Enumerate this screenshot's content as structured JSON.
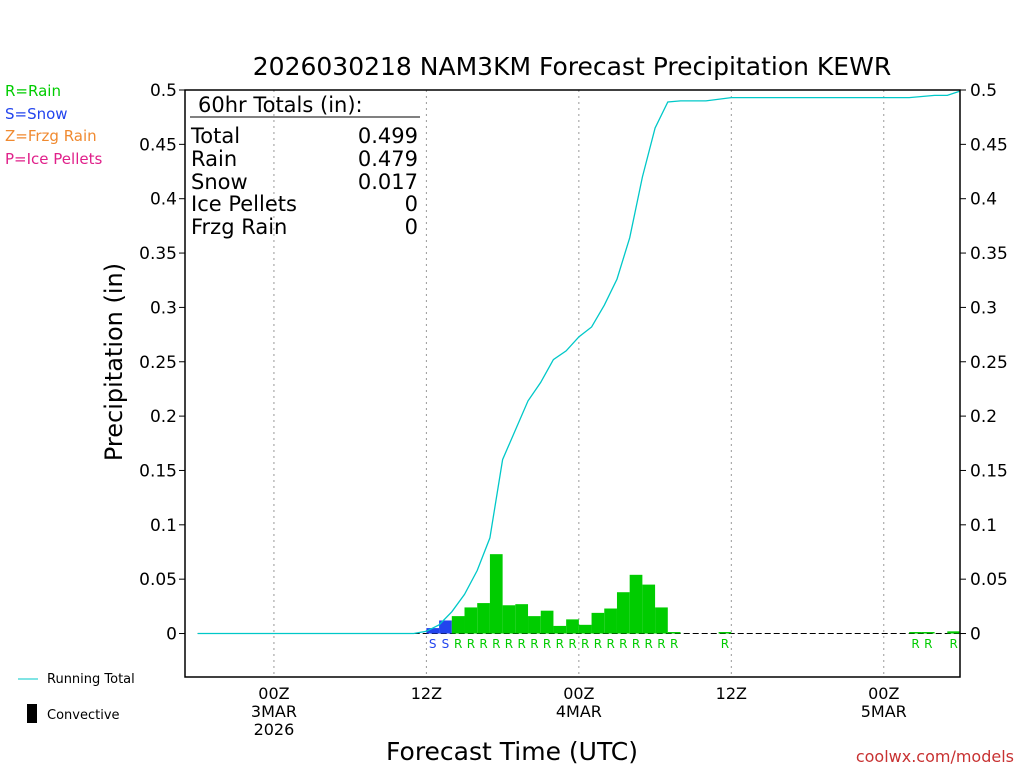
{
  "chart_data": {
    "type": "bar",
    "title": "2026030218 NAM3KM Forecast Precipitation KEWR",
    "xlabel": "Forecast Time (UTC)",
    "ylabel": "Precipitation (in)",
    "ylim": [
      -0.04,
      0.5
    ],
    "y_ticks": [
      0,
      0.05,
      0.1,
      0.15,
      0.2,
      0.25,
      0.3,
      0.35,
      0.4,
      0.45,
      0.5
    ],
    "y_tick_labels": [
      "0",
      "0.05",
      "0.1",
      "0.15",
      "0.2",
      "0.25",
      "0.3",
      "0.35",
      "0.4",
      "0.45",
      "0.5"
    ],
    "x_unit": "forecast hour (from 2026-03-02 18Z)",
    "xlim": [
      -1,
      60
    ],
    "x_ticks": [
      {
        "hour": 6,
        "lines": [
          "00Z",
          "3MAR",
          "2026"
        ]
      },
      {
        "hour": 18,
        "lines": [
          "12Z"
        ]
      },
      {
        "hour": 30,
        "lines": [
          "00Z",
          "4MAR"
        ]
      },
      {
        "hour": 42,
        "lines": [
          "12Z"
        ]
      },
      {
        "hour": 54,
        "lines": [
          "00Z",
          "5MAR"
        ]
      }
    ],
    "legend_types": [
      {
        "text": "R=Rain",
        "color": "#00cc00"
      },
      {
        "text": "S=Snow",
        "color": "#2244ee"
      },
      {
        "text": "Z=Frzg Rain",
        "color": "#f08a30"
      },
      {
        "text": "P=Ice Pellets",
        "color": "#e0208a"
      }
    ],
    "legend_series": [
      {
        "text": "Running Total",
        "color": "#00c8c8",
        "kind": "line"
      },
      {
        "text": "Convective",
        "color": "#000000",
        "kind": "bar"
      }
    ],
    "totals": {
      "header": "60hr Totals (in):",
      "rows": [
        {
          "label": "Total",
          "value": "0.499"
        },
        {
          "label": "Rain",
          "value": "0.479"
        },
        {
          "label": "Snow",
          "value": "0.017"
        },
        {
          "label": "Ice Pellets",
          "value": "0"
        },
        {
          "label": "Frzg Rain",
          "value": "0"
        }
      ]
    },
    "hourly_precip": [
      {
        "hour": 19,
        "value": 0.005,
        "type": "S"
      },
      {
        "hour": 20,
        "value": 0.012,
        "type": "S"
      },
      {
        "hour": 21,
        "value": 0.016,
        "type": "R"
      },
      {
        "hour": 22,
        "value": 0.024,
        "type": "R"
      },
      {
        "hour": 23,
        "value": 0.028,
        "type": "R"
      },
      {
        "hour": 24,
        "value": 0.073,
        "type": "R"
      },
      {
        "hour": 25,
        "value": 0.026,
        "type": "R"
      },
      {
        "hour": 26,
        "value": 0.027,
        "type": "R"
      },
      {
        "hour": 27,
        "value": 0.016,
        "type": "R"
      },
      {
        "hour": 28,
        "value": 0.021,
        "type": "R"
      },
      {
        "hour": 29,
        "value": 0.007,
        "type": "R"
      },
      {
        "hour": 30,
        "value": 0.013,
        "type": "R"
      },
      {
        "hour": 31,
        "value": 0.008,
        "type": "R"
      },
      {
        "hour": 32,
        "value": 0.019,
        "type": "R"
      },
      {
        "hour": 33,
        "value": 0.023,
        "type": "R"
      },
      {
        "hour": 34,
        "value": 0.038,
        "type": "R"
      },
      {
        "hour": 35,
        "value": 0.054,
        "type": "R"
      },
      {
        "hour": 36,
        "value": 0.045,
        "type": "R"
      },
      {
        "hour": 37,
        "value": 0.024,
        "type": "R"
      },
      {
        "hour": 38,
        "value": 0.0005,
        "type": "R"
      },
      {
        "hour": 42,
        "value": 0.0003,
        "type": "R"
      },
      {
        "hour": 57,
        "value": 0.001,
        "type": "R"
      },
      {
        "hour": 58,
        "value": 0.0008,
        "type": "R"
      },
      {
        "hour": 60,
        "value": 0.002,
        "type": "R"
      }
    ],
    "running_total": {
      "hours": [
        0,
        17,
        18,
        19,
        20,
        21,
        22,
        23,
        24,
        25,
        26,
        27,
        28,
        29,
        30,
        31,
        32,
        33,
        34,
        35,
        36,
        37,
        38,
        39,
        40,
        42,
        44,
        50,
        56,
        58,
        59,
        60
      ],
      "values": [
        0,
        0,
        0.002,
        0.008,
        0.02,
        0.036,
        0.058,
        0.088,
        0.16,
        0.187,
        0.214,
        0.231,
        0.252,
        0.26,
        0.273,
        0.282,
        0.302,
        0.326,
        0.364,
        0.42,
        0.465,
        0.489,
        0.49,
        0.49,
        0.49,
        0.493,
        0.493,
        0.493,
        0.493,
        0.495,
        0.495,
        0.499
      ]
    },
    "type_letters": [
      {
        "hour": 19,
        "type": "S"
      },
      {
        "hour": 20,
        "type": "S"
      },
      {
        "hour": 21,
        "type": "R"
      },
      {
        "hour": 22,
        "type": "R"
      },
      {
        "hour": 23,
        "type": "R"
      },
      {
        "hour": 24,
        "type": "R"
      },
      {
        "hour": 25,
        "type": "R"
      },
      {
        "hour": 26,
        "type": "R"
      },
      {
        "hour": 27,
        "type": "R"
      },
      {
        "hour": 28,
        "type": "R"
      },
      {
        "hour": 29,
        "type": "R"
      },
      {
        "hour": 30,
        "type": "R"
      },
      {
        "hour": 31,
        "type": "R"
      },
      {
        "hour": 32,
        "type": "R"
      },
      {
        "hour": 33,
        "type": "R"
      },
      {
        "hour": 34,
        "type": "R"
      },
      {
        "hour": 35,
        "type": "R"
      },
      {
        "hour": 36,
        "type": "R"
      },
      {
        "hour": 37,
        "type": "R"
      },
      {
        "hour": 38,
        "type": "R"
      },
      {
        "hour": 42,
        "type": "R"
      },
      {
        "hour": 57,
        "type": "R"
      },
      {
        "hour": 58,
        "type": "R"
      },
      {
        "hour": 60,
        "type": "R"
      }
    ],
    "colors": {
      "rain": "#00cc00",
      "snow": "#2244ee",
      "running_total": "#00c8c8",
      "credit": "#c83232"
    },
    "credit": "coolwx.com/models"
  }
}
